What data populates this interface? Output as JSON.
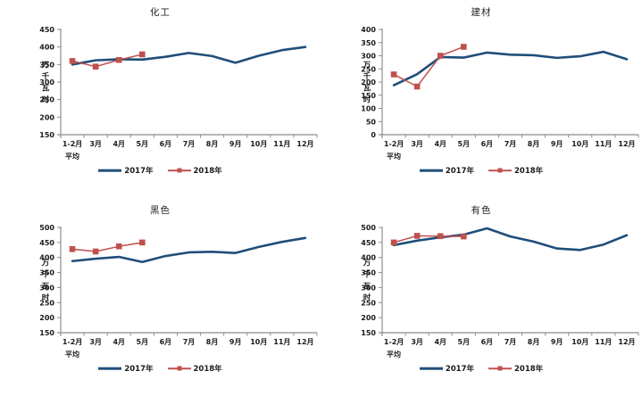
{
  "page": {
    "background": "#FFFFFF"
  },
  "chart_data": [
    {
      "type": "line",
      "title": "化工",
      "ylabel": "万千瓦时",
      "xlabel": "",
      "categories": [
        "1-2月\n平均",
        "3月",
        "4月",
        "5月",
        "6月",
        "7月",
        "8月",
        "9月",
        "10月",
        "11月",
        "12月"
      ],
      "ylim": [
        150,
        450
      ],
      "ytick_step": 50,
      "grid": false,
      "legend_position": "bottom",
      "series": [
        {
          "name": "2017年",
          "color": "#1F4E79",
          "marker": "none",
          "values": [
            350,
            362,
            365,
            364,
            372,
            383,
            374,
            355,
            375,
            391,
            400
          ]
        },
        {
          "name": "2018年",
          "color": "#C0504D",
          "marker": "square",
          "values": [
            360,
            344,
            363,
            379
          ]
        }
      ]
    },
    {
      "type": "line",
      "title": "建材",
      "ylabel": "万千瓦时",
      "xlabel": "",
      "categories": [
        "1-2月\n平均",
        "3月",
        "4月",
        "5月",
        "6月",
        "7月",
        "8月",
        "9月",
        "10月",
        "11月",
        "12月"
      ],
      "ylim": [
        0,
        400
      ],
      "ytick_step": 50,
      "grid": false,
      "legend_position": "bottom",
      "series": [
        {
          "name": "2017年",
          "color": "#1F4E79",
          "marker": "none",
          "values": [
            188,
            230,
            295,
            293,
            312,
            304,
            302,
            292,
            298,
            315,
            287
          ]
        },
        {
          "name": "2018年",
          "color": "#C0504D",
          "marker": "square",
          "values": [
            229,
            183,
            300,
            334
          ]
        }
      ]
    },
    {
      "type": "line",
      "title": "黑色",
      "ylabel": "万千瓦时",
      "xlabel": "",
      "categories": [
        "1-2月\n平均",
        "3月",
        "4月",
        "5月",
        "6月",
        "7月",
        "8月",
        "9月",
        "10月",
        "11月",
        "12月"
      ],
      "ylim": [
        150,
        500
      ],
      "ytick_step": 50,
      "grid": false,
      "legend_position": "bottom",
      "series": [
        {
          "name": "2017年",
          "color": "#1F4E79",
          "marker": "none",
          "values": [
            388,
            396,
            402,
            385,
            405,
            417,
            419,
            415,
            435,
            452,
            465
          ]
        },
        {
          "name": "2018年",
          "color": "#C0504D",
          "marker": "square",
          "values": [
            428,
            420,
            437,
            450
          ]
        }
      ]
    },
    {
      "type": "line",
      "title": "有色",
      "ylabel": "万千瓦时",
      "xlabel": "",
      "categories": [
        "1-2月\n平均",
        "3月",
        "4月",
        "5月",
        "6月",
        "7月",
        "8月",
        "9月",
        "10月",
        "11月",
        "12月"
      ],
      "ylim": [
        150,
        500
      ],
      "ytick_step": 50,
      "grid": false,
      "legend_position": "bottom",
      "series": [
        {
          "name": "2017年",
          "color": "#1F4E79",
          "marker": "none",
          "values": [
            441,
            456,
            467,
            476,
            497,
            470,
            453,
            430,
            425,
            443,
            474
          ]
        },
        {
          "name": "2018年",
          "color": "#C0504D",
          "marker": "square",
          "values": [
            450,
            472,
            471,
            470
          ]
        }
      ]
    }
  ]
}
